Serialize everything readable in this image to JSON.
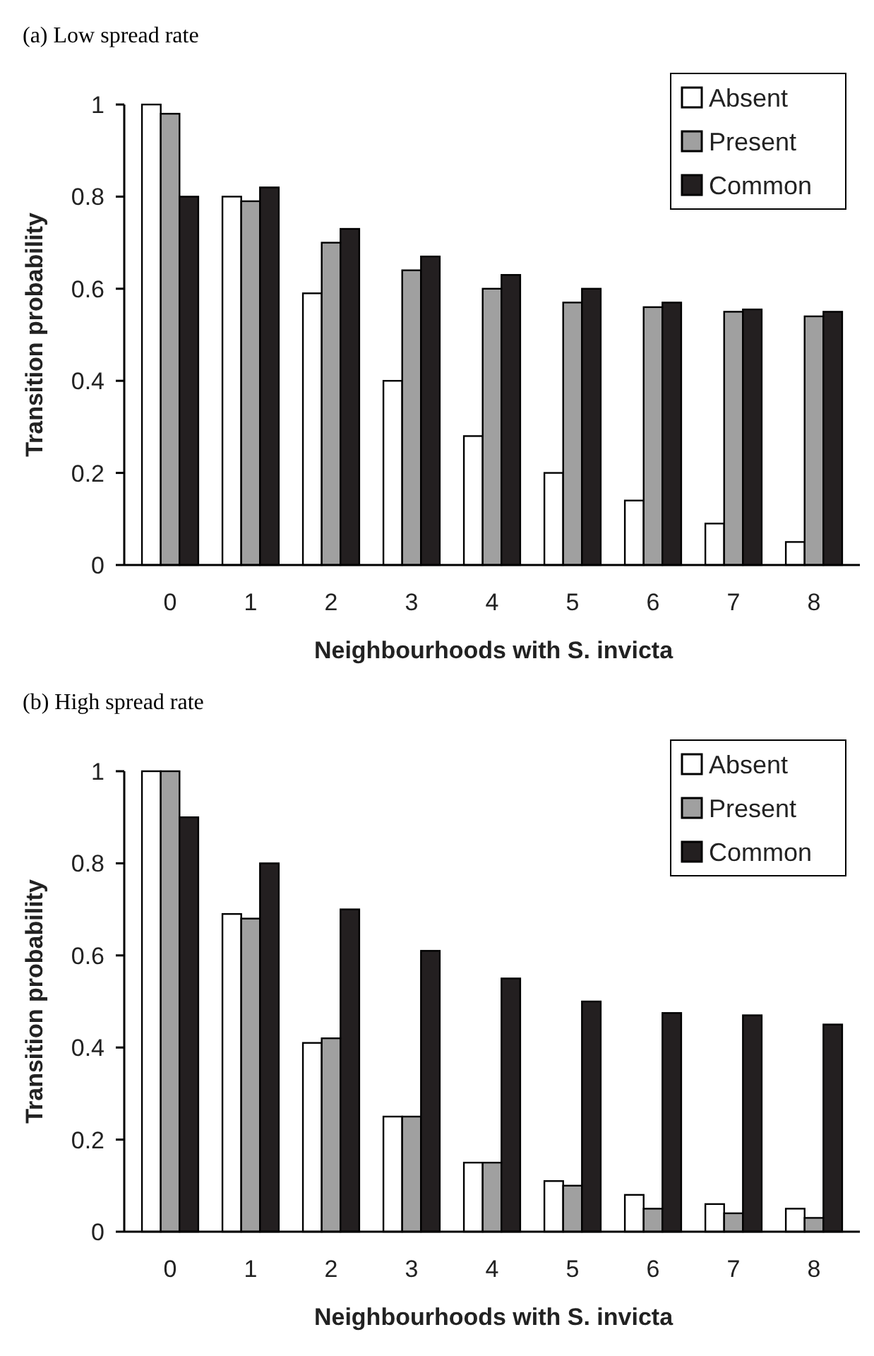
{
  "chart_data": [
    {
      "type": "bar",
      "title": "(a) Low spread rate",
      "xlabel": "Neighbourhoods with S. invicta",
      "ylabel": "Transition probability",
      "categories": [
        "0",
        "1",
        "2",
        "3",
        "4",
        "5",
        "6",
        "7",
        "8"
      ],
      "ylim": [
        0,
        1
      ],
      "yticks": [
        0,
        0.2,
        0.4,
        0.6,
        0.8,
        1
      ],
      "legend": "top right",
      "series": [
        {
          "name": "Absent",
          "color": "#ffffff",
          "values": [
            1,
            0.8,
            0.59,
            0.4,
            0.28,
            0.2,
            0.14,
            0.09,
            0.05
          ]
        },
        {
          "name": "Present",
          "color": "#a0a0a0",
          "values": [
            0.98,
            0.79,
            0.7,
            0.64,
            0.6,
            0.57,
            0.56,
            0.55,
            0.54
          ]
        },
        {
          "name": "Common",
          "color": "#231f20",
          "values": [
            0.8,
            0.82,
            0.73,
            0.67,
            0.63,
            0.6,
            0.57,
            0.555,
            0.55
          ]
        }
      ]
    },
    {
      "type": "bar",
      "title": "(b) High spread rate",
      "xlabel": "Neighbourhoods with S. invicta",
      "ylabel": "Transition probability",
      "categories": [
        "0",
        "1",
        "2",
        "3",
        "4",
        "5",
        "6",
        "7",
        "8"
      ],
      "ylim": [
        0,
        1
      ],
      "yticks": [
        0,
        0.2,
        0.4,
        0.6,
        0.8,
        1
      ],
      "legend": "top right",
      "series": [
        {
          "name": "Absent",
          "color": "#ffffff",
          "values": [
            1,
            0.69,
            0.41,
            0.25,
            0.15,
            0.11,
            0.08,
            0.06,
            0.05
          ]
        },
        {
          "name": "Present",
          "color": "#a0a0a0",
          "values": [
            1,
            0.68,
            0.42,
            0.25,
            0.15,
            0.1,
            0.05,
            0.04,
            0.03
          ]
        },
        {
          "name": "Common",
          "color": "#231f20",
          "values": [
            0.9,
            0.8,
            0.7,
            0.61,
            0.55,
            0.5,
            0.475,
            0.47,
            0.45
          ]
        }
      ]
    }
  ]
}
